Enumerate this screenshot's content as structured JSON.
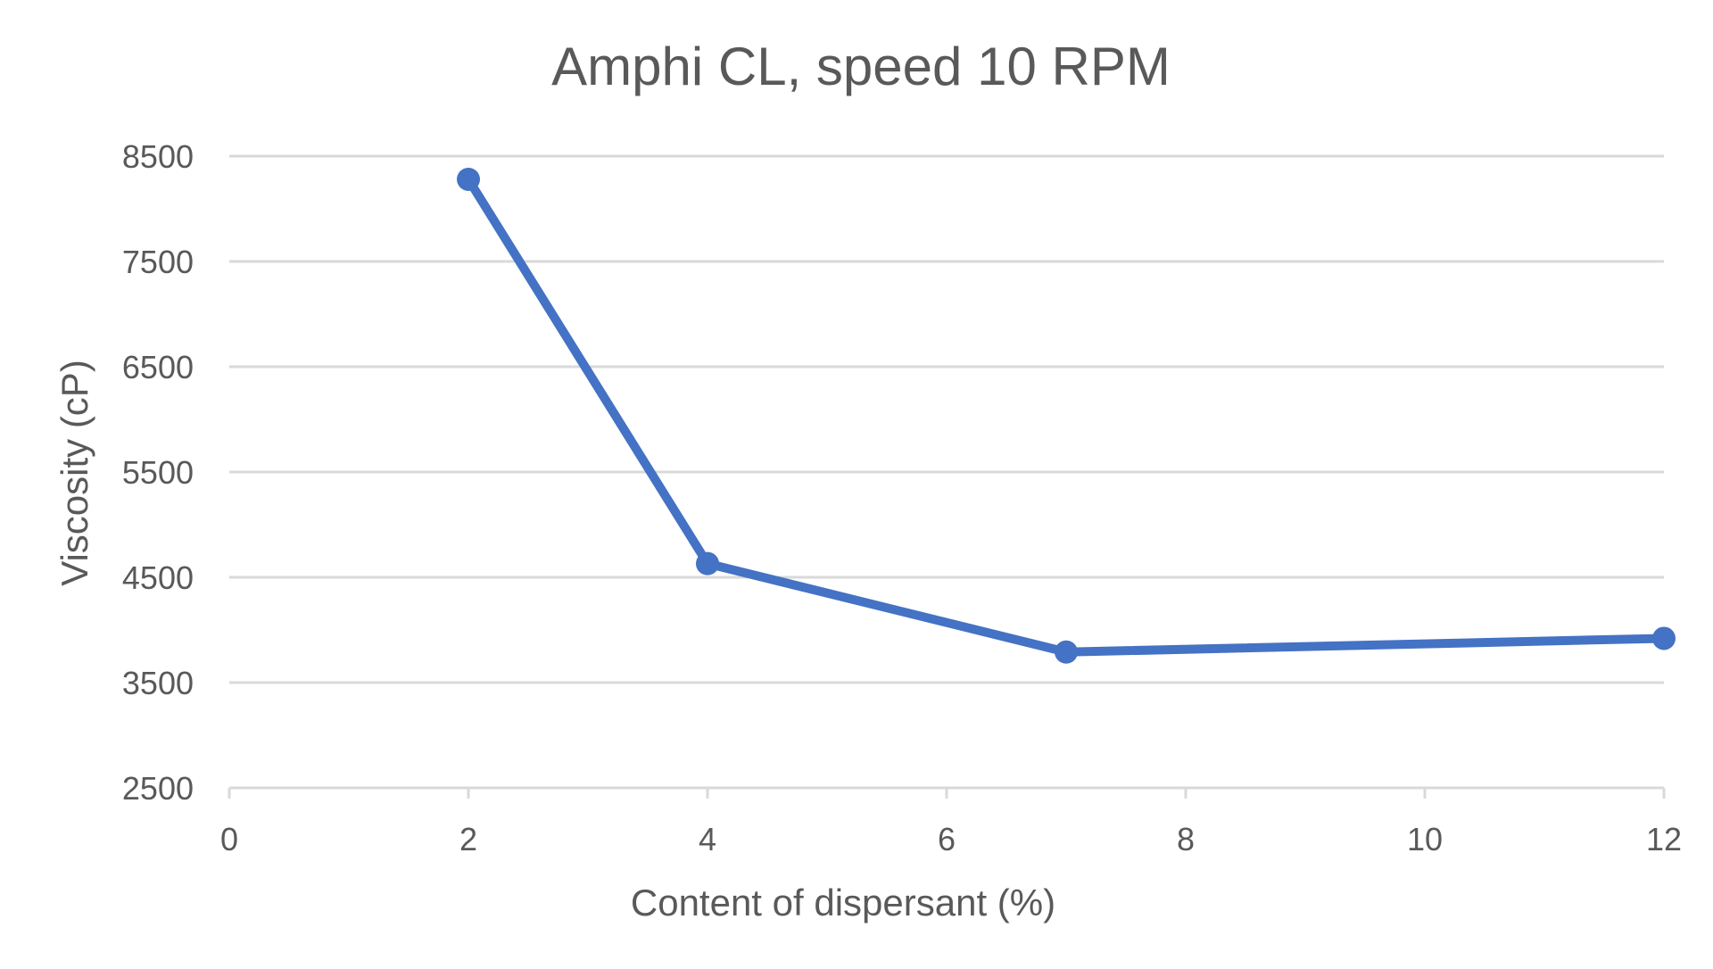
{
  "chart_data": {
    "type": "scatter",
    "mode": "lines+markers",
    "title": "Amphi CL, speed 10 RPM",
    "xlabel": "Content of dispersant (%)",
    "ylabel": "Viscosity (cP)",
    "xlim": [
      0,
      12
    ],
    "ylim": [
      2500,
      8500
    ],
    "xticks": [
      0,
      2,
      4,
      6,
      8,
      10,
      12
    ],
    "yticks": [
      2500,
      3500,
      4500,
      5500,
      6500,
      7500,
      8500
    ],
    "grid": "horizontal",
    "legend": "none",
    "series": [
      {
        "name": "Amphi CL",
        "color": "#4472c4",
        "x": [
          2,
          4,
          7,
          12
        ],
        "y": [
          8280,
          4630,
          3790,
          3920
        ]
      }
    ]
  }
}
